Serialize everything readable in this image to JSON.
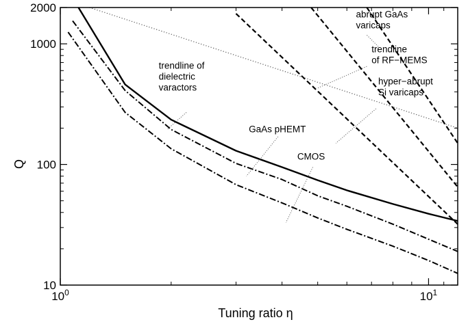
{
  "chart_data": {
    "type": "line",
    "xlabel": "Tuning ratio η",
    "ylabel": "Q",
    "xscale": "log",
    "yscale": "log",
    "xlim": [
      1,
      12
    ],
    "ylim": [
      10,
      2000
    ],
    "x_ticks": [
      {
        "value": 1,
        "base": "10",
        "exp": "0"
      },
      {
        "value": 10,
        "base": "10",
        "exp": "1"
      }
    ],
    "y_ticks": [
      {
        "value": 10,
        "label": "10"
      },
      {
        "value": 100,
        "label": "100"
      },
      {
        "value": 1000,
        "label": "1000"
      },
      {
        "value": 2000,
        "label": "2000"
      }
    ],
    "grid": false,
    "legend": "none",
    "series": [
      {
        "style": "solid",
        "color": "#000000",
        "x": [
          1.12,
          1.5,
          2.0,
          3.0,
          4.0,
          5.0,
          6.0,
          8.0,
          10.0,
          12.0
        ],
        "y": [
          2000,
          460,
          235,
          130,
          95,
          74,
          61,
          47,
          39,
          34
        ]
      },
      {
        "style": "dashdot",
        "color": "#000000",
        "x": [
          1.08,
          1.5,
          2.0,
          3.0,
          4.0,
          5.0,
          6.0,
          8.0,
          10.0,
          12.0
        ],
        "y": [
          1550,
          410,
          195,
          102,
          75,
          55,
          45,
          32,
          24,
          19
        ]
      },
      {
        "style": "dashdot",
        "color": "#000000",
        "x": [
          1.05,
          1.5,
          2.0,
          3.0,
          4.0,
          5.0,
          6.0,
          8.0,
          10.0,
          12.0
        ],
        "y": [
          1250,
          270,
          135,
          68,
          48,
          36,
          29,
          21,
          16,
          12.5
        ]
      },
      {
        "style": "dashed",
        "color": "#000000",
        "x": [
          3.0,
          12.0
        ],
        "y": [
          1780,
          32
        ]
      },
      {
        "style": "dashed",
        "color": "#000000",
        "x": [
          4.8,
          12.0
        ],
        "y": [
          2000,
          65
        ]
      },
      {
        "style": "dashed",
        "color": "#000000",
        "x": [
          6.8,
          12.0
        ],
        "y": [
          2000,
          150
        ]
      },
      {
        "style": "dotted",
        "color": "#555555",
        "x": [
          1.2,
          12.0
        ],
        "y": [
          2000,
          200
        ]
      }
    ],
    "annotations": [
      {
        "lines": [
          "abrupt GaAs",
          "varicaps"
        ],
        "anchor": "start",
        "at": [
          6.35,
          1650
        ],
        "leader": [
          [
            6.8,
            1180
          ],
          [
            7.3,
            950
          ]
        ]
      },
      {
        "lines": [
          "trendline",
          "of RF−MEMS"
        ],
        "anchor": "start",
        "at": [
          7.0,
          850
        ],
        "leader": [
          [
            6.8,
            650
          ],
          [
            5.0,
            430
          ]
        ]
      },
      {
        "lines": [
          "hyper−abrupt",
          "Si varicaps"
        ],
        "anchor": "start",
        "at": [
          7.3,
          460
        ],
        "leader": [
          [
            7.2,
            290
          ],
          [
            5.6,
            150
          ]
        ]
      },
      {
        "lines": [
          "trendline of",
          "dielectric",
          "varactors"
        ],
        "anchor": "start",
        "at": [
          1.85,
          620
        ],
        "leader": [
          [
            2.2,
            270
          ],
          [
            1.95,
            195
          ]
        ]
      },
      {
        "lines": [
          "GaAs pHEMT"
        ],
        "anchor": "start",
        "at": [
          3.25,
          185
        ],
        "leader": [
          [
            3.9,
            170
          ],
          [
            3.2,
            80
          ]
        ]
      },
      {
        "lines": [
          "CMOS"
        ],
        "anchor": "start",
        "at": [
          4.4,
          110
        ],
        "leader": [
          [
            4.85,
            95
          ],
          [
            4.1,
            33
          ]
        ]
      }
    ]
  }
}
